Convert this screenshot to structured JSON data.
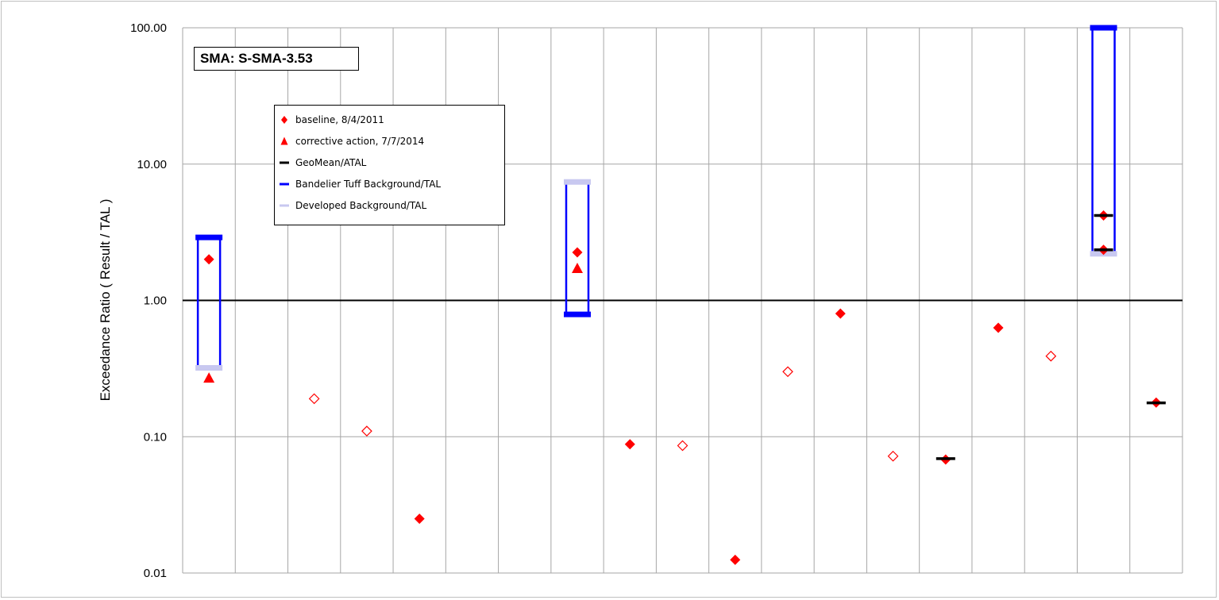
{
  "chart_data": {
    "type": "scatter",
    "title": "",
    "annotation": "SMA: S-SMA-3.53",
    "xlabel": "",
    "ylabel": "Exceedance Ratio  ( Result / TAL )",
    "yscale": "log",
    "ylim": [
      0.01,
      100
    ],
    "yticks": [
      "0.01",
      "0.10",
      "1.00",
      "10.00",
      "100.00"
    ],
    "reference_line": 1.0,
    "categories": 19,
    "grid": true,
    "legend_placement": "upper-left",
    "legend": [
      "baseline, 8/4/2011",
      "corrective action, 7/7/2014",
      "GeoMean/ATAL",
      "Bandelier Tuff Background/TAL",
      "Developed Background/TAL"
    ],
    "colors": {
      "baseline": "#ff0000",
      "corrective": "#ff0000",
      "geomean": "#000000",
      "bandelier": "#0000ff",
      "developed": "#c8c8f0",
      "reference": "#000000",
      "grid": "#a6a6a6"
    },
    "baseline_filled": [
      {
        "x": 1,
        "y": 2.0
      },
      {
        "x": 5,
        "y": 0.025
      },
      {
        "x": 8,
        "y": 2.25
      },
      {
        "x": 9,
        "y": 0.088
      },
      {
        "x": 11,
        "y": 0.0125
      },
      {
        "x": 13,
        "y": 0.8
      },
      {
        "x": 15,
        "y": 0.068
      },
      {
        "x": 16,
        "y": 0.63
      },
      {
        "x": 18,
        "y": 4.2
      },
      {
        "x": 18,
        "y": 2.35
      },
      {
        "x": 19,
        "y": 0.178
      }
    ],
    "baseline_open": [
      {
        "x": 3,
        "y": 0.19
      },
      {
        "x": 4,
        "y": 0.11
      },
      {
        "x": 10,
        "y": 0.086
      },
      {
        "x": 12,
        "y": 0.3
      },
      {
        "x": 14,
        "y": 0.072
      },
      {
        "x": 17,
        "y": 0.39
      }
    ],
    "corrective_action": [
      {
        "x": 1,
        "y": 0.27
      },
      {
        "x": 8,
        "y": 1.72
      }
    ],
    "geomean": [
      {
        "x": 15,
        "y": 0.069
      },
      {
        "x": 18,
        "y": 4.2
      },
      {
        "x": 18,
        "y": 2.35
      },
      {
        "x": 19,
        "y": 0.177
      }
    ],
    "background_ranges": [
      {
        "x": 1,
        "bandelier": 2.9,
        "developed": 0.32
      },
      {
        "x": 8,
        "bandelier": 0.79,
        "developed": 7.4
      },
      {
        "x": 18,
        "bandelier": 100,
        "developed": 2.2
      }
    ]
  }
}
